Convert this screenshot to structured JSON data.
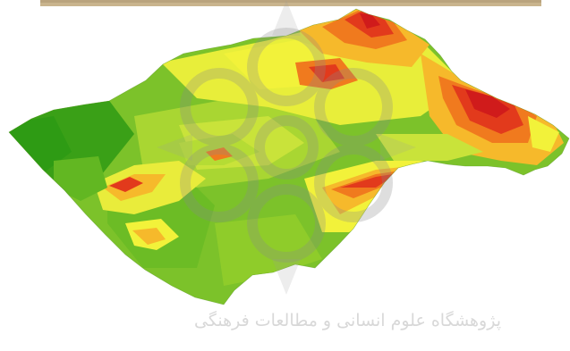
{
  "map": {
    "type": "3D terrain elevation surface",
    "color_ramp": [
      "#2e9b14",
      "#5fb51f",
      "#8fcc2a",
      "#c9e33a",
      "#f2f23a",
      "#f6b92b",
      "#f07a1e",
      "#e23a1c",
      "#d01b1b"
    ],
    "color_ramp_direction": "low (green) to high (red)"
  },
  "watermark": {
    "text": "پژوهشگاه علوم انسانی و مطالعات فرهنگی",
    "emblem": "geometric-rosette-emblem"
  },
  "top_strip": {
    "description_color": "#c9b48d"
  }
}
